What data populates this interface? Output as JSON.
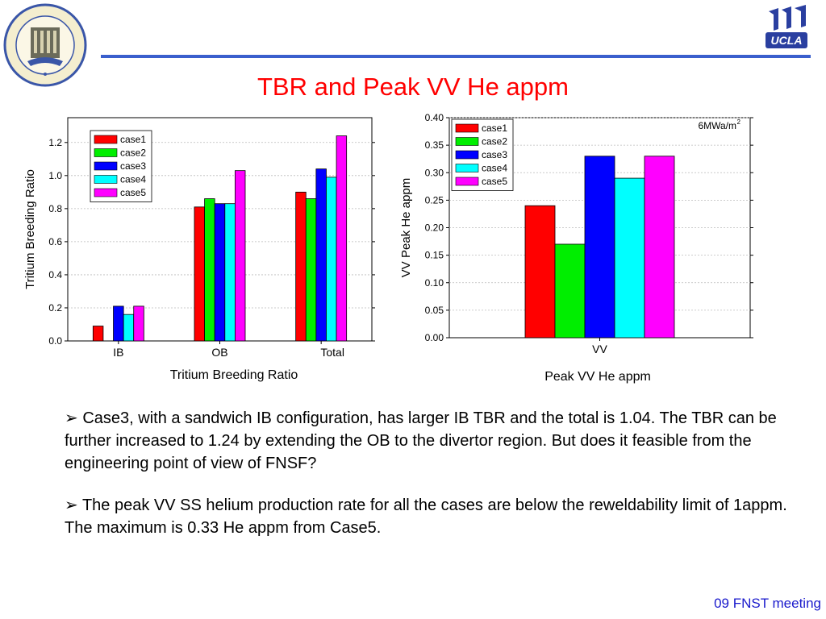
{
  "slide_title": "TBR and Peak VV He appm",
  "footer": "09 FNST meeting",
  "seal_text": "SCHOOL OF ENGINEERING AND APPLIED SCIENCE · UCLA",
  "logo_text": "UCLA",
  "bullets": [
    "Case3, with a sandwich IB configuration, has larger IB TBR and the total is 1.04. The TBR can be further increased to 1.24 by extending the OB to the divertor region. But does it feasible from the engineering point of view of FNSF?",
    "The peak VV SS helium production rate for all the cases are below the reweldability limit of 1appm. The maximum is 0.33 He appm from Case5."
  ],
  "bullet_glyph": "➢",
  "colors": {
    "case1": "#ff0000",
    "case2": "#00ee00",
    "case3": "#0000ff",
    "case4": "#00ffff",
    "case5": "#ff00ff",
    "title": "#ff0000",
    "rule": "#3a5fcd",
    "footer": "#1a1acc"
  },
  "chart_data": [
    {
      "type": "bar",
      "categories": [
        "IB",
        "OB",
        "Total"
      ],
      "series": [
        {
          "name": "case1",
          "values": [
            0.09,
            0.81,
            0.9
          ]
        },
        {
          "name": "case2",
          "values": [
            0.0,
            0.86,
            0.86
          ]
        },
        {
          "name": "case3",
          "values": [
            0.21,
            0.83,
            1.04
          ]
        },
        {
          "name": "case4",
          "values": [
            0.16,
            0.83,
            0.99
          ]
        },
        {
          "name": "case5",
          "values": [
            0.21,
            1.03,
            1.24
          ]
        }
      ],
      "xlabel": "Tritium Breeding Ratio",
      "ylabel": "Tritium Breeding Ratio",
      "ylim": [
        0,
        1.35
      ],
      "yticks": [
        0.0,
        0.2,
        0.4,
        0.6,
        0.8,
        1.0,
        1.2
      ],
      "ytick_labels": [
        "0.0",
        "0.2",
        "0.4",
        "0.6",
        "0.8",
        "1.0",
        "1.2"
      ],
      "grid": true,
      "legend_position": "top-left"
    },
    {
      "type": "bar",
      "categories": [
        "VV"
      ],
      "series": [
        {
          "name": "case1",
          "values": [
            0.24
          ]
        },
        {
          "name": "case2",
          "values": [
            0.17
          ]
        },
        {
          "name": "case3",
          "values": [
            0.33
          ]
        },
        {
          "name": "case4",
          "values": [
            0.29
          ]
        },
        {
          "name": "case5",
          "values": [
            0.33
          ]
        }
      ],
      "xlabel": "Peak VV He appm",
      "ylabel": "VV Peak He appm",
      "ylim": [
        0,
        0.4
      ],
      "yticks": [
        0.0,
        0.05,
        0.1,
        0.15,
        0.2,
        0.25,
        0.3,
        0.35,
        0.4
      ],
      "ytick_labels": [
        "0.00",
        "0.05",
        "0.10",
        "0.15",
        "0.20",
        "0.25",
        "0.30",
        "0.35",
        "0.40"
      ],
      "annotation": "6MWa/m",
      "annotation_sup": "2",
      "grid": true,
      "legend_position": "top-left"
    }
  ]
}
